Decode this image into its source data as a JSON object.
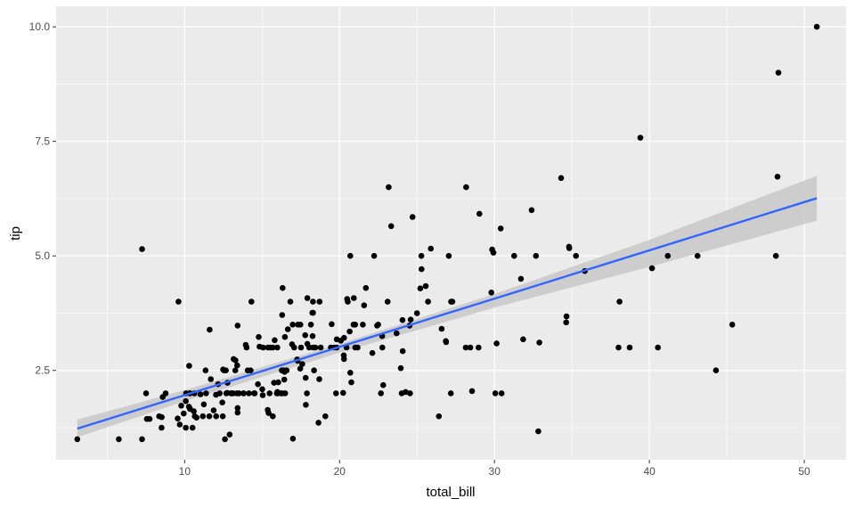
{
  "chart_data": {
    "type": "scatter",
    "title": "",
    "xlabel": "total_bill",
    "ylabel": "tip",
    "xlim": [
      1.7,
      52.7
    ],
    "ylim": [
      0.55,
      10.45
    ],
    "x_ticks": [
      10,
      20,
      30,
      40,
      50
    ],
    "x_tick_labels": [
      "10",
      "20",
      "30",
      "40",
      "50"
    ],
    "y_ticks": [
      2.5,
      5.0,
      7.5,
      10.0
    ],
    "y_tick_labels": [
      "2.5",
      "5.0",
      "7.5",
      "10.0"
    ],
    "grid": true,
    "legend": "none",
    "colors": {
      "panel": "#ebebeb",
      "grid_major": "#ffffff",
      "point": "#000000",
      "trend_line": "#3366ff",
      "confidence_band": "#c8c8c8"
    },
    "trend": {
      "type": "linear",
      "x": [
        3.07,
        50.81
      ],
      "y": [
        1.23,
        6.26
      ],
      "ci_band": {
        "x": [
          3.07,
          10,
          20,
          30,
          40,
          50.81
        ],
        "lower": [
          1.04,
          1.83,
          2.89,
          3.87,
          4.76,
          5.77
        ],
        "upper": [
          1.43,
          2.07,
          3.08,
          4.17,
          5.35,
          6.75
        ]
      }
    },
    "x": [
      16.99,
      10.34,
      21.01,
      23.68,
      24.59,
      25.29,
      8.77,
      26.88,
      15.04,
      14.78,
      10.27,
      35.26,
      15.42,
      18.43,
      14.83,
      21.58,
      10.33,
      16.29,
      16.97,
      20.65,
      17.92,
      20.29,
      15.77,
      39.42,
      19.82,
      17.81,
      13.37,
      12.69,
      21.7,
      19.65,
      9.55,
      18.35,
      15.06,
      20.69,
      17.78,
      24.06,
      16.31,
      16.93,
      18.69,
      31.27,
      16.04,
      17.46,
      13.94,
      9.68,
      30.4,
      18.29,
      22.23,
      32.4,
      28.55,
      18.04,
      12.54,
      10.29,
      34.81,
      9.94,
      25.56,
      19.49,
      38.01,
      26.41,
      11.24,
      48.27,
      20.29,
      13.81,
      11.02,
      18.29,
      17.59,
      20.08,
      16.45,
      3.07,
      20.23,
      15.01,
      12.02,
      17.07,
      26.86,
      25.28,
      14.73,
      10.51,
      17.92,
      27.2,
      22.76,
      17.29,
      19.44,
      16.66,
      10.07,
      32.68,
      15.98,
      34.83,
      13.03,
      18.28,
      24.71,
      21.16,
      28.97,
      22.49,
      5.75,
      16.32,
      22.75,
      40.17,
      27.28,
      12.03,
      21.01,
      12.46,
      11.35,
      15.38,
      44.3,
      22.42,
      20.92,
      15.36,
      20.49,
      25.21,
      18.24,
      14.31,
      14.0,
      7.25,
      38.07,
      23.95,
      25.71,
      17.31,
      29.93,
      10.65,
      12.43,
      24.08,
      11.69,
      13.42,
      14.26,
      15.95,
      12.48,
      29.8,
      8.52,
      14.52,
      11.38,
      22.82,
      19.08,
      20.27,
      11.17,
      12.26,
      18.26,
      8.51,
      10.33,
      14.15,
      16.0,
      13.16,
      17.47,
      34.3,
      41.19,
      27.05,
      16.43,
      8.35,
      18.64,
      11.87,
      9.78,
      7.51,
      14.07,
      13.13,
      17.26,
      24.55,
      19.77,
      29.85,
      48.17,
      25.0,
      13.39,
      16.49,
      21.5,
      12.66,
      16.21,
      13.81,
      17.51,
      24.52,
      20.76,
      31.71,
      10.59,
      10.63,
      50.81,
      15.81,
      7.25,
      31.85,
      16.82,
      32.9,
      17.89,
      14.48,
      9.6,
      34.63,
      34.65,
      23.33,
      45.35,
      23.17,
      40.55,
      20.69,
      20.9,
      30.46,
      18.15,
      23.1,
      15.69,
      19.81,
      28.44,
      15.48,
      16.58,
      7.56,
      10.34,
      43.11,
      13.0,
      13.51,
      18.71,
      12.74,
      13.0,
      16.4,
      20.53,
      16.47,
      26.59,
      38.73,
      24.27,
      12.76,
      30.06,
      25.89,
      48.33,
      13.27,
      28.17,
      12.9,
      28.15,
      11.59,
      7.74,
      30.14,
      12.16,
      13.42,
      8.58,
      15.98,
      13.42,
      16.27,
      10.09,
      20.45,
      13.28,
      22.12,
      24.01,
      15.69,
      11.61,
      10.77,
      15.53,
      10.07,
      12.6,
      32.83,
      35.83,
      29.03,
      27.18,
      22.67,
      17.82,
      18.78
    ],
    "y": [
      1.01,
      1.66,
      3.5,
      3.31,
      3.61,
      4.71,
      2.0,
      3.12,
      1.96,
      3.23,
      1.71,
      5.0,
      1.57,
      3.0,
      3.02,
      3.92,
      1.67,
      3.71,
      3.5,
      3.35,
      4.08,
      2.75,
      2.23,
      7.58,
      3.18,
      2.34,
      2.0,
      2.0,
      4.3,
      3.0,
      1.45,
      2.5,
      3.0,
      2.45,
      3.27,
      3.6,
      2.0,
      3.07,
      2.31,
      5.0,
      2.24,
      2.54,
      3.06,
      1.32,
      5.6,
      3.0,
      5.0,
      6.0,
      2.05,
      3.0,
      2.5,
      2.6,
      5.2,
      1.56,
      4.34,
      3.51,
      3.0,
      1.5,
      1.76,
      6.73,
      3.21,
      2.0,
      1.98,
      3.76,
      2.64,
      3.15,
      2.47,
      1.0,
      2.01,
      2.09,
      1.97,
      3.0,
      3.14,
      5.0,
      2.2,
      1.25,
      3.08,
      4.0,
      3.0,
      2.71,
      3.0,
      3.4,
      1.83,
      5.0,
      2.03,
      5.17,
      2.0,
      4.0,
      5.85,
      3.0,
      3.0,
      3.5,
      1.0,
      4.3,
      3.25,
      4.73,
      4.0,
      1.5,
      3.0,
      1.5,
      2.5,
      3.0,
      2.5,
      3.48,
      4.08,
      1.64,
      4.06,
      4.29,
      3.76,
      4.0,
      3.0,
      1.0,
      4.0,
      2.55,
      4.0,
      3.5,
      5.07,
      1.5,
      1.8,
      2.92,
      2.31,
      1.68,
      2.5,
      2.0,
      2.52,
      4.2,
      1.48,
      2.0,
      2.0,
      2.18,
      1.5,
      2.83,
      1.5,
      2.0,
      3.25,
      1.25,
      2.0,
      2.0,
      2.0,
      2.75,
      3.5,
      6.7,
      5.0,
      5.0,
      2.3,
      1.5,
      1.36,
      1.63,
      1.73,
      2.0,
      2.5,
      2.0,
      2.74,
      2.0,
      2.0,
      5.14,
      5.0,
      3.75,
      2.61,
      2.0,
      3.5,
      2.5,
      2.0,
      2.0,
      3.0,
      3.48,
      2.24,
      4.5,
      1.61,
      2.0,
      10.0,
      3.16,
      5.15,
      3.18,
      4.0,
      3.11,
      2.0,
      2.0,
      4.0,
      3.55,
      3.68,
      5.65,
      3.5,
      6.5,
      3.0,
      5.0,
      3.5,
      2.0,
      3.5,
      4.0,
      1.5,
      3.0,
      3.0,
      2.0,
      2.5,
      1.44,
      2.0,
      5.0,
      2.0,
      2.0,
      4.0,
      2.01,
      2.0,
      2.5,
      4.0,
      3.23,
      3.41,
      3.0,
      2.03,
      2.23,
      2.0,
      5.16,
      9.0,
      2.5,
      6.5,
      1.1,
      3.0,
      1.5,
      1.44,
      3.09,
      2.2,
      3.48,
      1.92,
      3.0,
      1.58,
      2.5,
      2.0,
      3.0,
      2.72,
      2.88,
      2.0,
      3.0,
      3.39,
      1.47,
      3.0,
      1.25,
      1.0,
      1.17,
      4.67,
      5.92,
      2.0,
      2.0,
      1.75,
      3.0
    ]
  }
}
